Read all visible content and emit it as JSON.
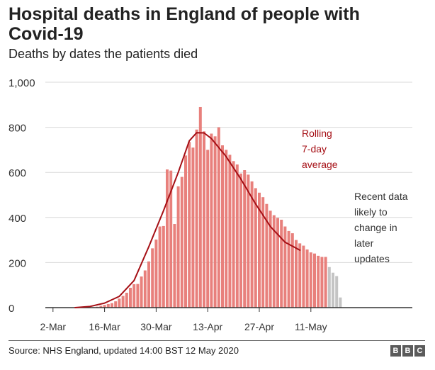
{
  "title": "Hospital deaths in England of people with Covid-19",
  "subtitle": "Deaths by dates the patients died",
  "source": "Source: NHS England, updated 14:00 BST 12 May 2020",
  "logo_text": "BBC",
  "colors": {
    "bars": "#e8807c",
    "recent_bars": "#c4c4c4",
    "average_line": "#a50f15",
    "grid": "#d9d9d9",
    "axis": "#333333"
  },
  "chart_data": {
    "type": "bar",
    "x_start": "2020-03-01",
    "values": [
      0,
      0,
      0,
      0,
      0,
      0,
      0,
      0,
      0,
      0,
      0,
      2,
      2,
      4,
      8,
      12,
      16,
      20,
      28,
      40,
      52,
      66,
      88,
      104,
      105,
      138,
      165,
      205,
      263,
      302,
      360,
      362,
      613,
      608,
      371,
      538,
      580,
      675,
      735,
      710,
      790,
      890,
      782,
      700,
      772,
      760,
      800,
      720,
      700,
      678,
      650,
      635,
      595,
      610,
      590,
      560,
      530,
      510,
      490,
      460,
      430,
      410,
      398,
      390,
      360,
      340,
      330,
      300,
      285,
      275,
      258,
      245,
      240,
      230,
      225,
      225,
      180,
      155,
      140,
      45
    ],
    "recent_from_index": 76,
    "rolling_7_day_average": [
      {
        "x": "2020-03-08",
        "y": 0
      },
      {
        "x": "2020-03-12",
        "y": 5
      },
      {
        "x": "2020-03-16",
        "y": 20
      },
      {
        "x": "2020-03-20",
        "y": 50
      },
      {
        "x": "2020-03-24",
        "y": 120
      },
      {
        "x": "2020-03-28",
        "y": 270
      },
      {
        "x": "2020-04-01",
        "y": 430
      },
      {
        "x": "2020-04-05",
        "y": 600
      },
      {
        "x": "2020-04-08",
        "y": 740
      },
      {
        "x": "2020-04-10",
        "y": 776
      },
      {
        "x": "2020-04-12",
        "y": 775
      },
      {
        "x": "2020-04-14",
        "y": 750
      },
      {
        "x": "2020-04-18",
        "y": 670
      },
      {
        "x": "2020-04-22",
        "y": 570
      },
      {
        "x": "2020-04-26",
        "y": 460
      },
      {
        "x": "2020-04-30",
        "y": 360
      },
      {
        "x": "2020-05-04",
        "y": 290
      },
      {
        "x": "2020-05-08",
        "y": 255
      }
    ],
    "ylim": [
      0,
      1000
    ],
    "yticks": [
      {
        "value": 0,
        "label": "0"
      },
      {
        "value": 200,
        "label": "200"
      },
      {
        "value": 400,
        "label": "400"
      },
      {
        "value": 600,
        "label": "600"
      },
      {
        "value": 800,
        "label": "800"
      },
      {
        "value": 1000,
        "label": "1,000"
      }
    ],
    "xticks": [
      {
        "x": "2020-03-02",
        "label": "2-Mar"
      },
      {
        "x": "2020-03-16",
        "label": "16-Mar"
      },
      {
        "x": "2020-03-30",
        "label": "30-Mar"
      },
      {
        "x": "2020-04-13",
        "label": "13-Apr"
      },
      {
        "x": "2020-04-27",
        "label": "27-Apr"
      },
      {
        "x": "2020-05-11",
        "label": "11-May"
      }
    ],
    "annotations": {
      "average": [
        "Rolling",
        "7-day",
        "average"
      ],
      "recent": [
        "Recent data",
        "likely to",
        "change in",
        "later",
        "updates"
      ]
    },
    "grid": true
  }
}
